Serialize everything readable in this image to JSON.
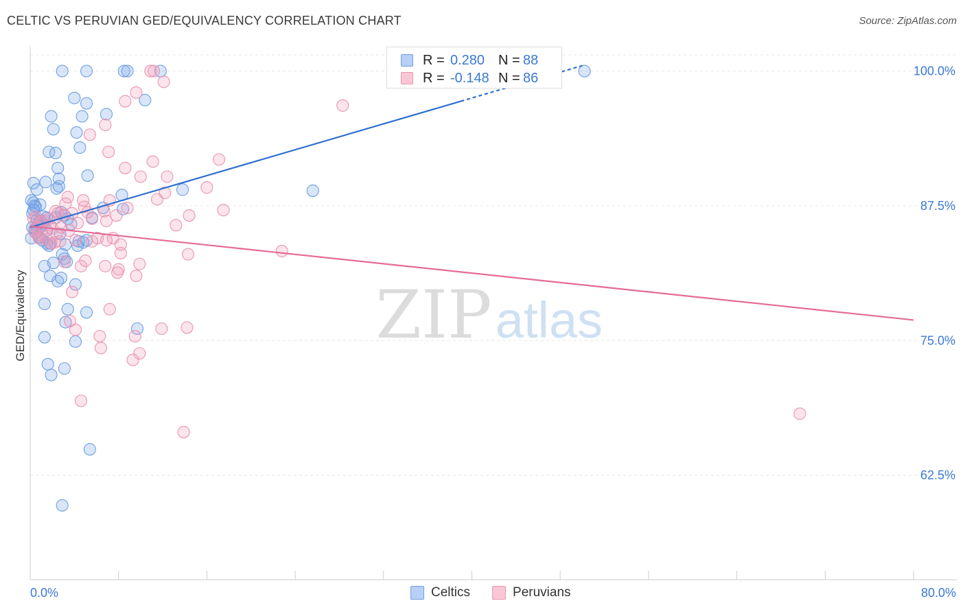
{
  "header": {
    "title": "CELTIC VS PERUVIAN GED/EQUIVALENCY CORRELATION CHART",
    "source": "Source: ZipAtlas.com"
  },
  "watermark": {
    "part1": "ZIP",
    "part2": "atlas"
  },
  "legend_top": {
    "r_label": "R =",
    "n_label": "N =",
    "rows": [
      {
        "r": "0.280",
        "n": "88",
        "color": "#6f9fe0"
      },
      {
        "r": "-0.148",
        "n": "86",
        "color": "#ea95b0"
      }
    ]
  },
  "legend_bottom": {
    "items": [
      {
        "label": "Celtics",
        "color": "#6f9fe0"
      },
      {
        "label": "Peruvians",
        "color": "#ea95b0"
      }
    ]
  },
  "chart_data": {
    "type": "scatter",
    "title": "CELTIC VS PERUVIAN GED/EQUIVALENCY CORRELATION CHART",
    "xlabel": "",
    "ylabel": "GED/Equivalency",
    "xlim": [
      0,
      80
    ],
    "ylim": [
      52.8,
      101.5
    ],
    "x_tick_labels": [
      "0.0%",
      "80.0%"
    ],
    "y_ticks": [
      62.5,
      75.0,
      87.5,
      100.0
    ],
    "y_tick_labels": [
      "62.5%",
      "75.0%",
      "87.5%",
      "100.0%"
    ],
    "grid": true,
    "series": [
      {
        "name": "Celtics",
        "color": "#6f9fe0",
        "fill": "rgba(120,165,235,0.28)",
        "trend": {
          "x0": 0.0,
          "y0": 85.5,
          "x1": 50.0,
          "y1": 100.5,
          "solid_until_x": 39.0,
          "line_color": "#2e6fcf"
        },
        "points": [
          [
            2.9,
            100.0
          ],
          [
            5.1,
            100.0
          ],
          [
            8.5,
            100.0
          ],
          [
            8.8,
            100.0
          ],
          [
            11.8,
            100.0
          ],
          [
            50.2,
            100.0
          ],
          [
            4.0,
            97.5
          ],
          [
            5.1,
            97.0
          ],
          [
            10.4,
            97.3
          ],
          [
            1.9,
            95.8
          ],
          [
            4.7,
            95.8
          ],
          [
            6.9,
            96.0
          ],
          [
            2.1,
            94.6
          ],
          [
            4.2,
            94.3
          ],
          [
            4.5,
            92.9
          ],
          [
            1.7,
            92.5
          ],
          [
            2.3,
            92.4
          ],
          [
            2.5,
            91.0
          ],
          [
            2.6,
            90.0
          ],
          [
            5.2,
            90.3
          ],
          [
            1.4,
            89.7
          ],
          [
            0.3,
            89.6
          ],
          [
            2.6,
            89.3
          ],
          [
            2.4,
            89.1
          ],
          [
            0.6,
            89.0
          ],
          [
            13.8,
            89.0
          ],
          [
            25.6,
            88.9
          ],
          [
            8.3,
            88.5
          ],
          [
            0.1,
            88.0
          ],
          [
            0.3,
            87.8
          ],
          [
            0.9,
            87.6
          ],
          [
            0.4,
            87.5
          ],
          [
            0.5,
            87.4
          ],
          [
            6.6,
            87.3
          ],
          [
            8.4,
            87.2
          ],
          [
            2.8,
            86.9
          ],
          [
            3.1,
            86.6
          ],
          [
            1.2,
            86.5
          ],
          [
            1.5,
            86.4
          ],
          [
            2.3,
            86.4
          ],
          [
            5.6,
            86.4
          ],
          [
            3.4,
            86.3
          ],
          [
            0.6,
            86.2
          ],
          [
            0.8,
            85.9
          ],
          [
            1.2,
            85.8
          ],
          [
            3.7,
            85.8
          ],
          [
            0.2,
            85.5
          ],
          [
            0.4,
            85.3
          ],
          [
            1.5,
            85.2
          ],
          [
            0.5,
            85.0
          ],
          [
            2.7,
            84.9
          ],
          [
            0.1,
            84.5
          ],
          [
            1.1,
            84.3
          ],
          [
            4.4,
            84.2
          ],
          [
            4.8,
            84.1
          ],
          [
            5.1,
            84.3
          ],
          [
            1.5,
            84.0
          ],
          [
            1.7,
            83.8
          ],
          [
            3.2,
            83.9
          ],
          [
            4.3,
            83.8
          ],
          [
            2.9,
            83.0
          ],
          [
            3.1,
            82.6
          ],
          [
            3.3,
            82.3
          ],
          [
            2.1,
            82.2
          ],
          [
            1.3,
            81.9
          ],
          [
            1.8,
            81.0
          ],
          [
            2.8,
            80.8
          ],
          [
            2.5,
            80.5
          ],
          [
            4.1,
            80.2
          ],
          [
            1.3,
            78.4
          ],
          [
            3.4,
            77.9
          ],
          [
            5.1,
            77.6
          ],
          [
            3.2,
            76.7
          ],
          [
            9.7,
            76.1
          ],
          [
            1.3,
            75.3
          ],
          [
            4.1,
            74.9
          ],
          [
            1.6,
            72.8
          ],
          [
            3.1,
            72.4
          ],
          [
            1.9,
            71.8
          ],
          [
            5.4,
            64.9
          ],
          [
            2.9,
            59.7
          ],
          [
            0.2,
            86.8
          ],
          [
            0.9,
            86.1
          ],
          [
            1.0,
            85.6
          ],
          [
            0.7,
            85.7
          ],
          [
            1.8,
            84.0
          ],
          [
            0.8,
            84.6
          ],
          [
            0.3,
            87.1
          ]
        ]
      },
      {
        "name": "Peruvians",
        "color": "#ea95b0",
        "fill": "rgba(240,150,180,0.26)",
        "trend": {
          "x0": 0.0,
          "y0": 85.6,
          "x1": 80.0,
          "y1": 76.9,
          "line_color": "#e56a96"
        },
        "points": [
          [
            10.9,
            100.0
          ],
          [
            11.2,
            100.0
          ],
          [
            12.1,
            99.0
          ],
          [
            9.6,
            98.0
          ],
          [
            8.6,
            97.2
          ],
          [
            28.3,
            96.8
          ],
          [
            6.8,
            95.0
          ],
          [
            5.4,
            94.1
          ],
          [
            7.1,
            92.5
          ],
          [
            11.1,
            91.6
          ],
          [
            17.1,
            91.8
          ],
          [
            8.6,
            91.0
          ],
          [
            10.0,
            90.2
          ],
          [
            12.4,
            90.2
          ],
          [
            16.0,
            89.2
          ],
          [
            12.2,
            88.7
          ],
          [
            11.5,
            88.1
          ],
          [
            3.4,
            88.3
          ],
          [
            4.8,
            88.0
          ],
          [
            7.2,
            88.0
          ],
          [
            4.9,
            87.4
          ],
          [
            14.4,
            86.6
          ],
          [
            17.5,
            87.1
          ],
          [
            8.8,
            87.3
          ],
          [
            6.7,
            87.0
          ],
          [
            2.3,
            87.0
          ],
          [
            2.9,
            86.6
          ],
          [
            5.6,
            86.3
          ],
          [
            6.9,
            86.1
          ],
          [
            0.9,
            86.0
          ],
          [
            1.8,
            85.7
          ],
          [
            0.6,
            85.5
          ],
          [
            13.2,
            85.7
          ],
          [
            3.5,
            85.2
          ],
          [
            6.1,
            84.5
          ],
          [
            7.5,
            84.5
          ],
          [
            4.1,
            84.3
          ],
          [
            5.6,
            84.2
          ],
          [
            8.2,
            83.9
          ],
          [
            0.8,
            84.5
          ],
          [
            1.9,
            84.0
          ],
          [
            2.7,
            84.2
          ],
          [
            14.3,
            83.0
          ],
          [
            22.8,
            83.3
          ],
          [
            8.2,
            83.1
          ],
          [
            3.1,
            82.3
          ],
          [
            5.0,
            82.4
          ],
          [
            6.8,
            81.9
          ],
          [
            4.6,
            81.9
          ],
          [
            8.0,
            81.6
          ],
          [
            7.9,
            81.3
          ],
          [
            9.9,
            82.1
          ],
          [
            9.6,
            81.0
          ],
          [
            3.8,
            79.5
          ],
          [
            7.2,
            77.9
          ],
          [
            3.6,
            76.8
          ],
          [
            4.1,
            76.0
          ],
          [
            11.9,
            76.1
          ],
          [
            14.2,
            76.2
          ],
          [
            6.3,
            75.4
          ],
          [
            9.5,
            75.4
          ],
          [
            6.4,
            74.3
          ],
          [
            9.9,
            73.8
          ],
          [
            9.3,
            73.2
          ],
          [
            4.6,
            69.4
          ],
          [
            13.9,
            66.5
          ],
          [
            69.7,
            68.2
          ],
          [
            0.3,
            86.3
          ],
          [
            0.4,
            85.1
          ],
          [
            1.2,
            86.1
          ],
          [
            1.5,
            84.4
          ],
          [
            2.0,
            85.4
          ],
          [
            2.5,
            86.8
          ],
          [
            3.8,
            86.8
          ],
          [
            4.3,
            85.9
          ],
          [
            6.9,
            84.3
          ],
          [
            2.4,
            84.9
          ],
          [
            1.1,
            84.7
          ],
          [
            0.5,
            86.5
          ],
          [
            3.2,
            87.7
          ],
          [
            5.2,
            86.9
          ],
          [
            1.7,
            86.3
          ],
          [
            0.7,
            84.8
          ],
          [
            2.8,
            85.5
          ],
          [
            7.8,
            86.6
          ],
          [
            2.2,
            84.1
          ]
        ]
      }
    ]
  }
}
